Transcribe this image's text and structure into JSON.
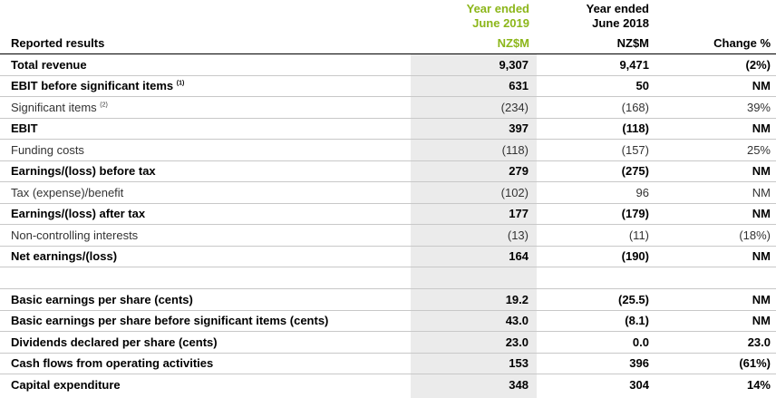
{
  "header": {
    "label": "Reported results",
    "col2019": {
      "line1": "Year ended",
      "line2": "June 2019",
      "unit": "NZ$M"
    },
    "col2018": {
      "line1": "Year ended",
      "line2": "June 2018",
      "unit": "NZ$M"
    },
    "change": "Change %"
  },
  "colors": {
    "accent": "#8cb61a",
    "shade": "#ebebeb",
    "rule": "#c8c8c8"
  },
  "rows": [
    {
      "label": "Total revenue",
      "sup": "",
      "v2019": "9,307",
      "v2018": "9,471",
      "change": "(2%)",
      "bold": true
    },
    {
      "label": "EBIT before significant items",
      "sup": "(1)",
      "v2019": "631",
      "v2018": "50",
      "change": "NM",
      "bold": true
    },
    {
      "label": "Significant items",
      "sup": "(2)",
      "v2019": "(234)",
      "v2018": "(168)",
      "change": "39%",
      "bold": false
    },
    {
      "label": "EBIT",
      "sup": "",
      "v2019": "397",
      "v2018": "(118)",
      "change": "NM",
      "bold": true
    },
    {
      "label": "Funding costs",
      "sup": "",
      "v2019": "(118)",
      "v2018": "(157)",
      "change": "25%",
      "bold": false
    },
    {
      "label": "Earnings/(loss) before tax",
      "sup": "",
      "v2019": "279",
      "v2018": "(275)",
      "change": "NM",
      "bold": true
    },
    {
      "label": "Tax (expense)/benefit",
      "sup": "",
      "v2019": "(102)",
      "v2018": "96",
      "change": "NM",
      "bold": false
    },
    {
      "label": "Earnings/(loss) after tax",
      "sup": "",
      "v2019": "177",
      "v2018": "(179)",
      "change": "NM",
      "bold": true
    },
    {
      "label": "Non-controlling interests",
      "sup": "",
      "v2019": "(13)",
      "v2018": "(11)",
      "change": "(18%)",
      "bold": false
    },
    {
      "label": "Net earnings/(loss)",
      "sup": "",
      "v2019": "164",
      "v2018": "(190)",
      "change": "NM",
      "bold": true
    },
    {
      "label": "",
      "sup": "",
      "v2019": "",
      "v2018": "",
      "change": "",
      "bold": false
    },
    {
      "label": "Basic earnings per share (cents)",
      "sup": "",
      "v2019": "19.2",
      "v2018": "(25.5)",
      "change": "NM",
      "bold": true
    },
    {
      "label": "Basic earnings per share before significant items (cents)",
      "sup": "",
      "v2019": "43.0",
      "v2018": "(8.1)",
      "change": "NM",
      "bold": true
    },
    {
      "label": "Dividends declared per share (cents)",
      "sup": "",
      "v2019": "23.0",
      "v2018": "0.0",
      "change": "23.0",
      "bold": true
    },
    {
      "label": "Cash flows from operating activities",
      "sup": "",
      "v2019": "153",
      "v2018": "396",
      "change": "(61%)",
      "bold": true
    },
    {
      "label": "Capital expenditure",
      "sup": "",
      "v2019": "348",
      "v2018": "304",
      "change": "14%",
      "bold": true
    }
  ]
}
